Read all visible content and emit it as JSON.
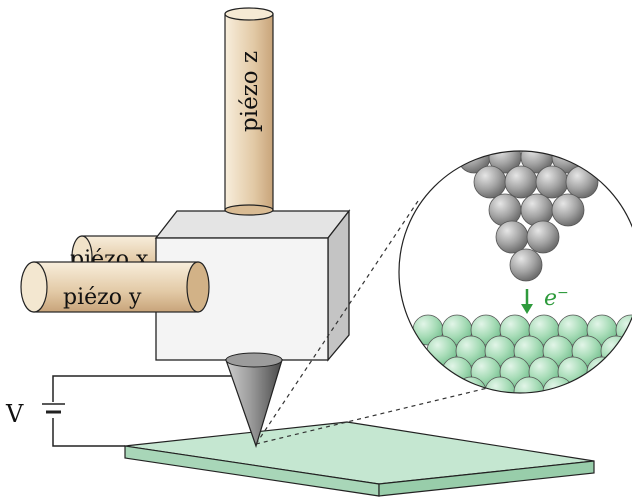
{
  "labels": {
    "piezo_z": "piézo z",
    "piezo_x": "piézo x",
    "piezo_y": "piézo y",
    "voltage": "V",
    "electron": "e",
    "electron_sup": "−"
  },
  "colors": {
    "piezo_light": "#f6ead4",
    "piezo_dark": "#c9a77c",
    "cube_front": "#f3f3f3",
    "cube_top": "#e2e2e2",
    "cube_side": "#bdbdbd",
    "tip": "#8c8c8c",
    "sample_top": "#bfe4cc",
    "sample_side": "#9fd2b2",
    "tip_atoms": "#9a9a9a",
    "sample_atoms": "#a6dcb6",
    "electron_arrow": "#2e9a3c",
    "electron_label": "#2e9a3c",
    "line": "#222222"
  },
  "icons": {
    "battery": "battery-icon",
    "arrow": "arrow-down-icon"
  }
}
